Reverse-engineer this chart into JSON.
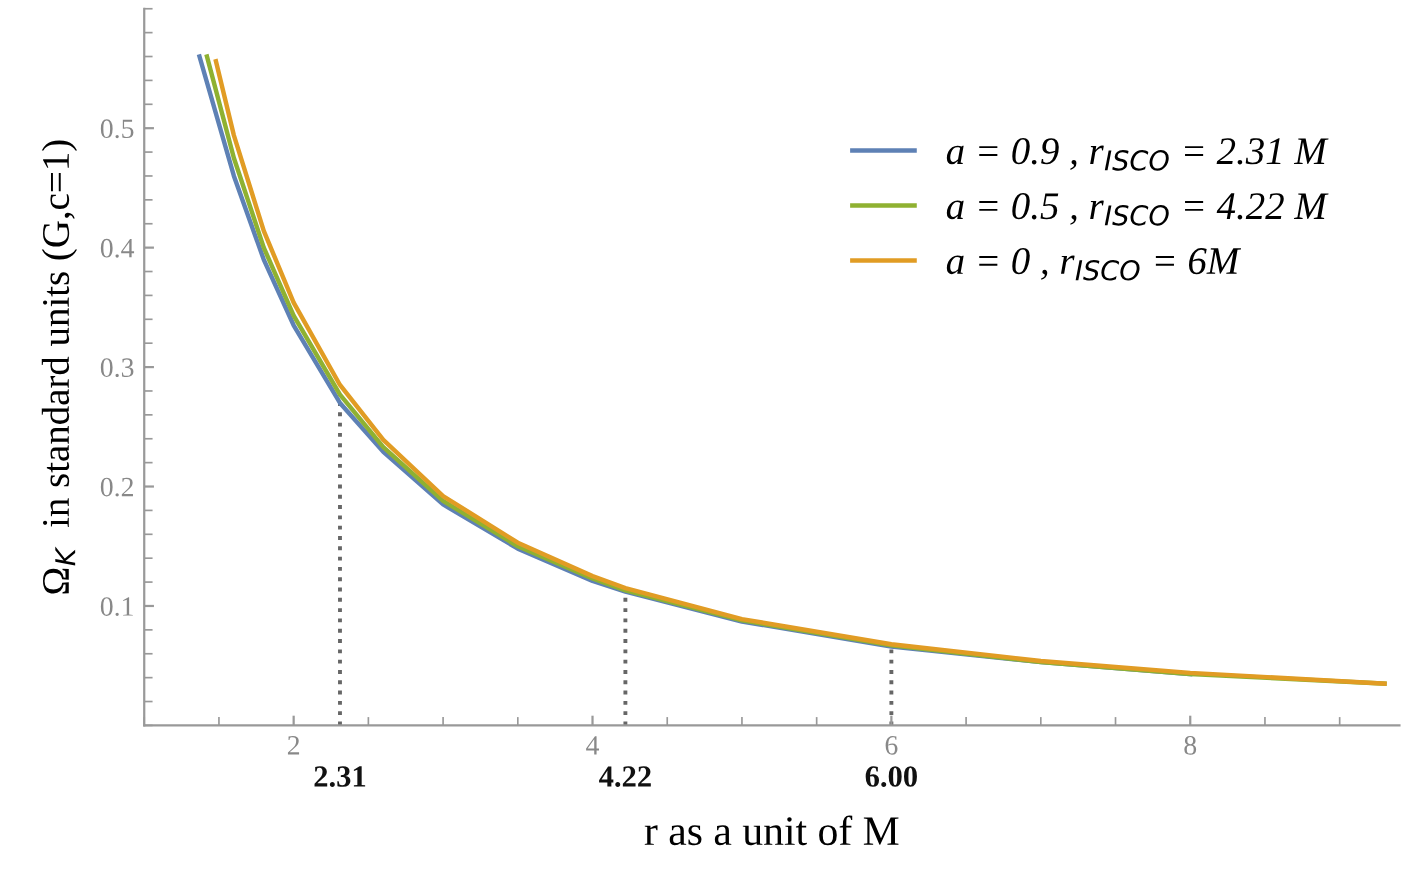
{
  "chart_data": {
    "type": "line",
    "xlabel": "r as a unit of M",
    "ylabel": "Ω$_{K}$  in standard units (G,c=1)",
    "xlim": [
      1,
      9.4
    ],
    "ylim": [
      0,
      0.6
    ],
    "xticks": [
      2,
      4,
      6,
      8
    ],
    "yticks": [
      0.1,
      0.2,
      0.3,
      0.4,
      0.5
    ],
    "legend": "top right",
    "grid": false,
    "series": [
      {
        "name": "a = 0.9 , r$_{ISCO}$ = 2.31 M",
        "color": "#5e81b5",
        "x": [
          1.37,
          1.6,
          1.8,
          2,
          2.31,
          2.6,
          3,
          3.5,
          4,
          4.22,
          5,
          6,
          7,
          8
        ],
        "values": [
          0.56,
          0.46,
          0.39,
          0.335,
          0.27,
          0.229,
          0.185,
          0.148,
          0.121,
          0.112,
          0.087,
          0.066,
          0.053,
          0.043
        ]
      },
      {
        "name": "a = 0.5 , r$_{ISCO}$ = 4.22 M",
        "color": "#8fb131",
        "x": [
          1.42,
          1.6,
          1.8,
          2,
          2.31,
          2.6,
          3,
          3.5,
          4,
          4.22,
          5,
          6,
          7,
          8,
          9.3
        ],
        "values": [
          0.56,
          0.475,
          0.4,
          0.343,
          0.277,
          0.233,
          0.188,
          0.15,
          0.123,
          0.113,
          0.088,
          0.067,
          0.053,
          0.043,
          0.035
        ]
      },
      {
        "name": "a = 0 , r$_{ISCO}$ = 6M",
        "color": "#e19c24",
        "x": [
          1.48,
          1.6,
          1.8,
          2,
          2.31,
          2.6,
          3,
          3.5,
          4,
          4.22,
          5,
          6,
          7,
          8,
          9.3
        ],
        "values": [
          0.556,
          0.494,
          0.414,
          0.354,
          0.285,
          0.239,
          0.192,
          0.153,
          0.125,
          0.115,
          0.089,
          0.068,
          0.054,
          0.044,
          0.035
        ]
      }
    ],
    "ref_lines": [
      {
        "axis": "x",
        "value": 2.31,
        "label": "2.31",
        "color": "#666666",
        "line_style": "dotted"
      },
      {
        "axis": "x",
        "value": 4.22,
        "label": "4.22",
        "color": "#666666",
        "line_style": "dotted"
      },
      {
        "axis": "x",
        "value": 6.0,
        "label": "6.00",
        "color": "#666666",
        "line_style": "dotted"
      }
    ]
  }
}
